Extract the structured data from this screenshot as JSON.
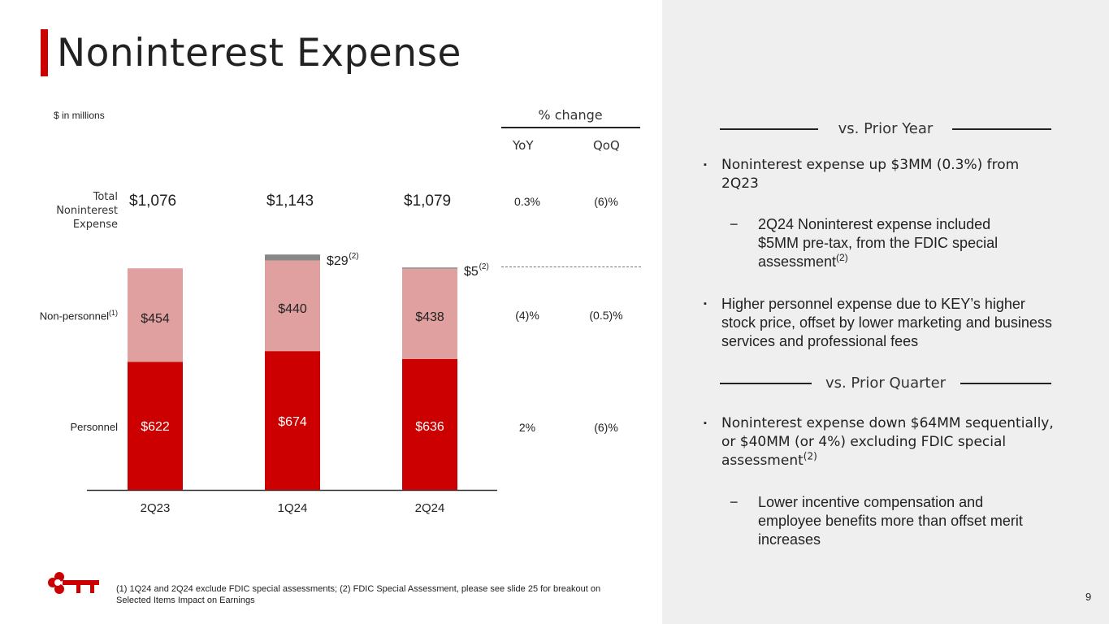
{
  "title": "Noninterest Expense",
  "units": "$ in millions",
  "pct_change": {
    "header": "% change",
    "yoy_label": "YoY",
    "qoq_label": "QoQ",
    "total": {
      "yoy": "0.3%",
      "qoq": "(6)%"
    },
    "nonpersonnel": {
      "yoy": "(4)%",
      "qoq": "(0.5)%"
    },
    "personnel": {
      "yoy": "2%",
      "qoq": "(6)%"
    }
  },
  "row_labels": {
    "total": "Total Noninterest Expense",
    "nonpersonnel": "Non-personnel",
    "nonpersonnel_sup": "(1)",
    "personnel": "Personnel"
  },
  "totals": [
    "$1,076",
    "$1,143",
    "$1,079"
  ],
  "chart_data": {
    "type": "bar",
    "stacked": true,
    "categories": [
      "2Q23",
      "1Q24",
      "2Q24"
    ],
    "series": [
      {
        "name": "Personnel",
        "values": [
          622,
          674,
          636
        ],
        "labels": [
          "$622",
          "$674",
          "$636"
        ],
        "color": "#cc0000"
      },
      {
        "name": "Non-personnel",
        "values": [
          454,
          440,
          438
        ],
        "labels": [
          "$454",
          "$440",
          "$438"
        ],
        "color": "#e0a0a0"
      },
      {
        "name": "FDIC special assessment",
        "values": [
          0,
          29,
          5
        ],
        "labels": [
          "",
          "$29",
          "$5"
        ],
        "label_sup": "(2)",
        "color": "#808080"
      }
    ],
    "ylim": [
      0,
      1200
    ]
  },
  "vs_prior_year": {
    "heading": "vs. Prior Year",
    "bullet1": "Noninterest expense up $3MM (0.3%) from 2Q23",
    "sub1": "2Q24 Noninterest expense included $5MM pre-tax, from the FDIC special assessment",
    "sub1_sup": "(2)",
    "bullet2": "Higher personnel expense due to KEY’s higher stock price, offset by lower marketing and business services and professional fees"
  },
  "vs_prior_quarter": {
    "heading": "vs. Prior Quarter",
    "bullet1": "Noninterest expense down $64MM sequentially, or $40MM (or 4%) excluding FDIC special assessment",
    "bullet1_sup": "(2)",
    "sub1": "Lower incentive compensation and employee benefits more than offset merit increases"
  },
  "markers": {
    "bullet": "▪",
    "dash": "−"
  },
  "footnote": "(1) 1Q24 and 2Q24 exclude FDIC special assessments; (2) FDIC Special Assessment, please see slide 25 for breakout on Selected Items Impact on Earnings",
  "page_number": "9",
  "colors": {
    "accent": "#cc0000",
    "panel": "#efefef"
  },
  "logo_icon": "key-logo-icon"
}
